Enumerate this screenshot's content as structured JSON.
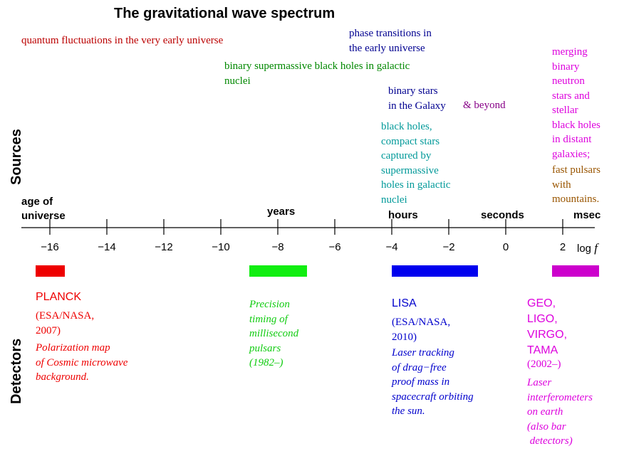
{
  "title": "The gravitational wave spectrum",
  "labels": {
    "sources": "Sources",
    "detectors": "Detectors"
  },
  "axis": {
    "ticks": [
      "−16",
      "−14",
      "−12",
      "−10",
      "−8",
      "−6",
      "−4",
      "−2",
      "0",
      "2"
    ],
    "unit_label": "log",
    "unit_var": "f",
    "timescales": {
      "age_of_universe": "age of\nuniverse",
      "years": "years",
      "hours": "hours",
      "seconds": "seconds",
      "msec": "msec"
    }
  },
  "sources": {
    "quantum": "quantum fluctuations in the very early universe",
    "phase": "phase transitions in\nthe early universe",
    "supermassive": "binary supermassive black holes in galactic\nnuclei",
    "binary_stars": "binary stars\nin the Galaxy",
    "beyond": "& beyond",
    "black_holes": "black holes,\ncompact stars\ncaptured by\nsupermassive\nholes in galactic\nnuclei",
    "merging": "merging\nbinary\nneutron\nstars and\nstellar\nblack holes\nin distant\ngalaxies;",
    "pulsars": "fast pulsars\nwith\nmountains."
  },
  "detectors": {
    "planck": {
      "name": "PLANCK",
      "agency": "(ESA/NASA,\n2007)",
      "desc": "Polarization map\nof Cosmic microwave\nbackground."
    },
    "pulsar_timing": {
      "desc": "Precision\ntiming of\nmillisecond\npulsars\n(1982–)"
    },
    "lisa": {
      "name": "LISA",
      "agency": "(ESA/NASA,\n2010)",
      "desc": "Laser tracking\nof drag−free\nproof mass in\nspacecraft orbiting\nthe sun."
    },
    "ground": {
      "name": "GEO,\nLIGO,\nVIRGO,\nTAMA",
      "years": "(2002–)",
      "desc": "Laser\ninterferometers\non earth\n(also bar\n detectors)"
    }
  },
  "colors": {
    "red": "#ee0000",
    "green": "#11cc11",
    "blue": "#0000cc",
    "navy": "#000090",
    "magenta": "#dd00dd",
    "teal": "#009999",
    "darkgreen": "#008800",
    "purple": "#880088",
    "brown": "#995500",
    "darkred": "#bb0000"
  }
}
